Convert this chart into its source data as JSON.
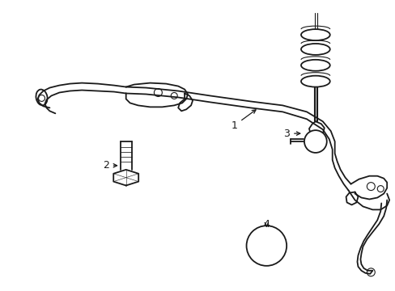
{
  "bg_color": "#ffffff",
  "line_color": "#1a1a1a",
  "lw": 1.3,
  "tlw": 0.8,
  "fig_width": 4.89,
  "fig_height": 3.6,
  "dpi": 100
}
